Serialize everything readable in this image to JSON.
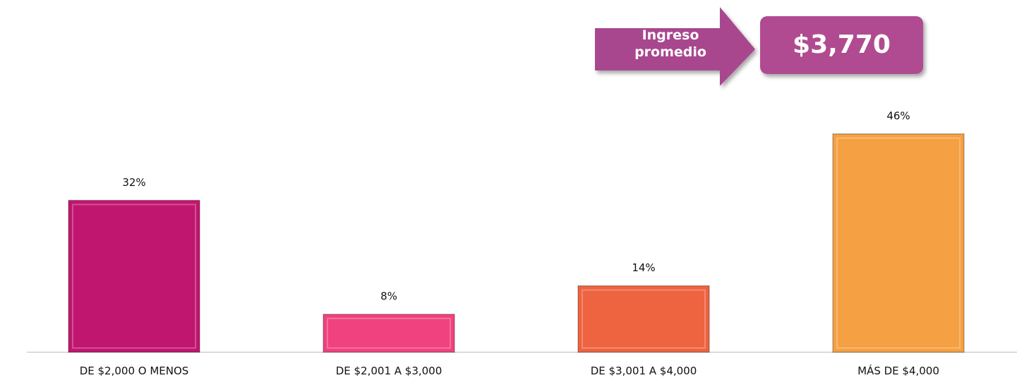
{
  "chart_data": {
    "type": "bar",
    "categories": [
      "DE $2,000 O MENOS",
      "DE $2,001 A $3,000",
      "DE $3,001 A $4,000",
      "MÁS DE $4,000"
    ],
    "values": [
      32,
      8,
      14,
      46
    ],
    "value_labels": [
      "32%",
      "8%",
      "14%",
      "46%"
    ],
    "colors": [
      "#c0166f",
      "#f0427f",
      "#ee6340",
      "#f5a043"
    ],
    "annotation": {
      "label": "Ingreso promedio",
      "value": "$3,770"
    }
  }
}
